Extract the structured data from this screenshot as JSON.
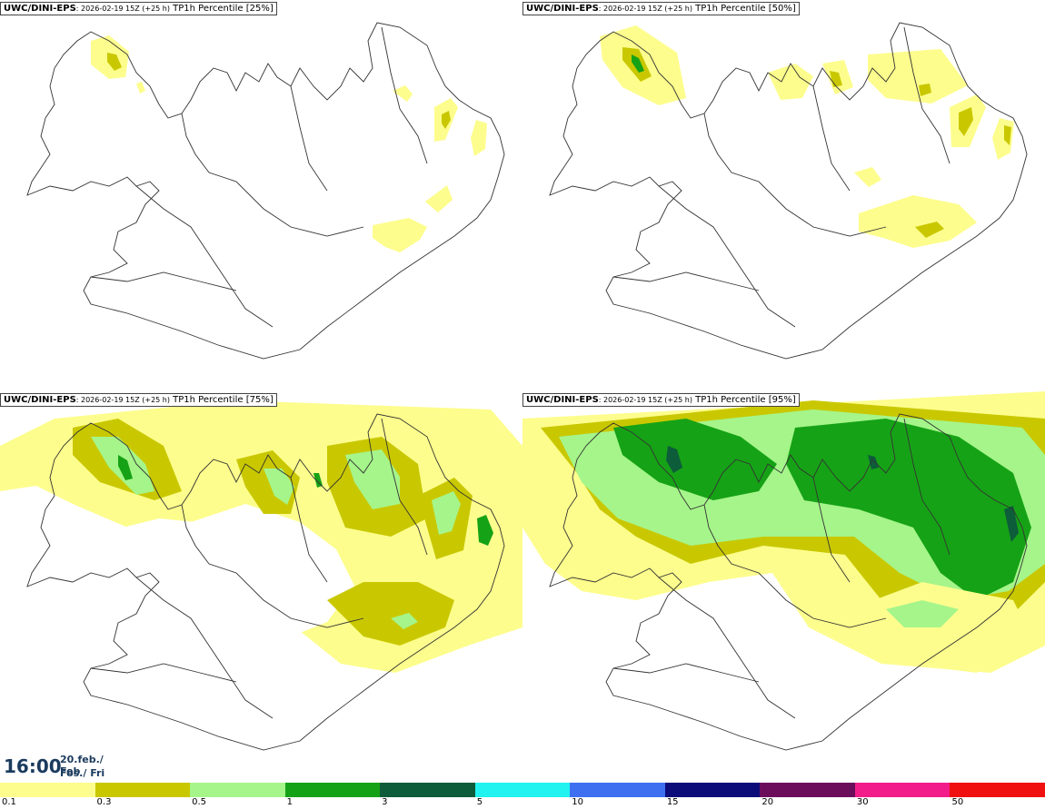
{
  "panels": [
    {
      "model": "UWC/DINI-EPS",
      "run": ": 2026-02-19 15Z (+25 h)",
      "field": " TP1h Percentile [25%]"
    },
    {
      "model": "UWC/DINI-EPS",
      "run": ": 2026-02-19 15Z (+25 h)",
      "field": " TP1h Percentile [50%]"
    },
    {
      "model": "UWC/DINI-EPS",
      "run": ": 2026-02-19 15Z (+25 h)",
      "field": " TP1h Percentile [75%]"
    },
    {
      "model": "UWC/DINI-EPS",
      "run": ": 2026-02-19 15Z (+25 h)",
      "field": " TP1h Percentile [95%]"
    }
  ],
  "valid_time": {
    "time": "16:00",
    "date_line1": "20.feb./ Feb",
    "date_line2": "Fös./ Fri"
  },
  "legend": {
    "colors": [
      "#fdfd8d",
      "#c9c800",
      "#a5f58a",
      "#16a216",
      "#0d5c3a",
      "#22f3f0",
      "#3e6ff0",
      "#0b0b7a",
      "#6b0d5b",
      "#f21d8a",
      "#f01010"
    ],
    "labels": [
      "0.1",
      "0.3",
      "0.5",
      "1",
      "3",
      "5",
      "10",
      "15",
      "20",
      "30",
      "50"
    ]
  }
}
